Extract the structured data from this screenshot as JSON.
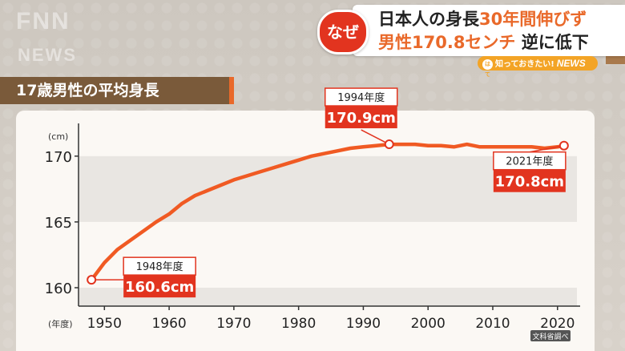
{
  "logo": {
    "text": "FNN",
    "sub": "NEWS"
  },
  "header": {
    "badge": "なぜ",
    "line1_a": "日本人の身長",
    "line1_b": "30年間伸びず",
    "line2_a": "男性170.8センチ",
    "line2_b": "逆に低下",
    "news_bar_badge": "はて",
    "news_bar_text": "知っておきたい!",
    "news_bar_news": "NEWS"
  },
  "chart_title": "17歳男性の平均身長",
  "source": "文科省調べ",
  "colors": {
    "accent": "#e9692a",
    "callout": "#e2341f",
    "line": "#f05a23"
  },
  "chart_data": {
    "type": "line",
    "title": "17歳男性の平均身長",
    "ylabel": "(cm)",
    "xlabel": "(年度)",
    "ylim": [
      158.6,
      172
    ],
    "xlim": [
      1946,
      2023
    ],
    "yticks": [
      160,
      165,
      170
    ],
    "xticks": [
      1950,
      1960,
      1970,
      1980,
      1990,
      2000,
      2010,
      2020
    ],
    "grid": "alternating horizontal bands",
    "series": [
      {
        "x": [
          1948,
          1950,
          1952,
          1954,
          1956,
          1958,
          1960,
          1962,
          1964,
          1966,
          1968,
          1970,
          1972,
          1974,
          1976,
          1978,
          1980,
          1982,
          1984,
          1986,
          1988,
          1990,
          1992,
          1994,
          1996,
          1998,
          2000,
          2002,
          2004,
          2006,
          2008,
          2010,
          2012,
          2014,
          2016,
          2018,
          2020,
          2021
        ],
        "values": [
          160.6,
          161.9,
          162.9,
          163.6,
          164.3,
          165.0,
          165.6,
          166.4,
          167.0,
          167.4,
          167.8,
          168.2,
          168.5,
          168.8,
          169.1,
          169.4,
          169.7,
          170.0,
          170.2,
          170.4,
          170.6,
          170.7,
          170.8,
          170.9,
          170.9,
          170.9,
          170.8,
          170.8,
          170.7,
          170.9,
          170.7,
          170.7,
          170.7,
          170.7,
          170.7,
          170.6,
          170.7,
          170.8
        ]
      }
    ],
    "annotations": [
      {
        "year_label": "1948年度",
        "value_label": "160.6cm",
        "x": 1948,
        "y": 160.6
      },
      {
        "year_label": "1994年度",
        "value_label": "170.9cm",
        "x": 1994,
        "y": 170.9
      },
      {
        "year_label": "2021年度",
        "value_label": "170.8cm",
        "x": 2021,
        "y": 170.8
      }
    ]
  }
}
